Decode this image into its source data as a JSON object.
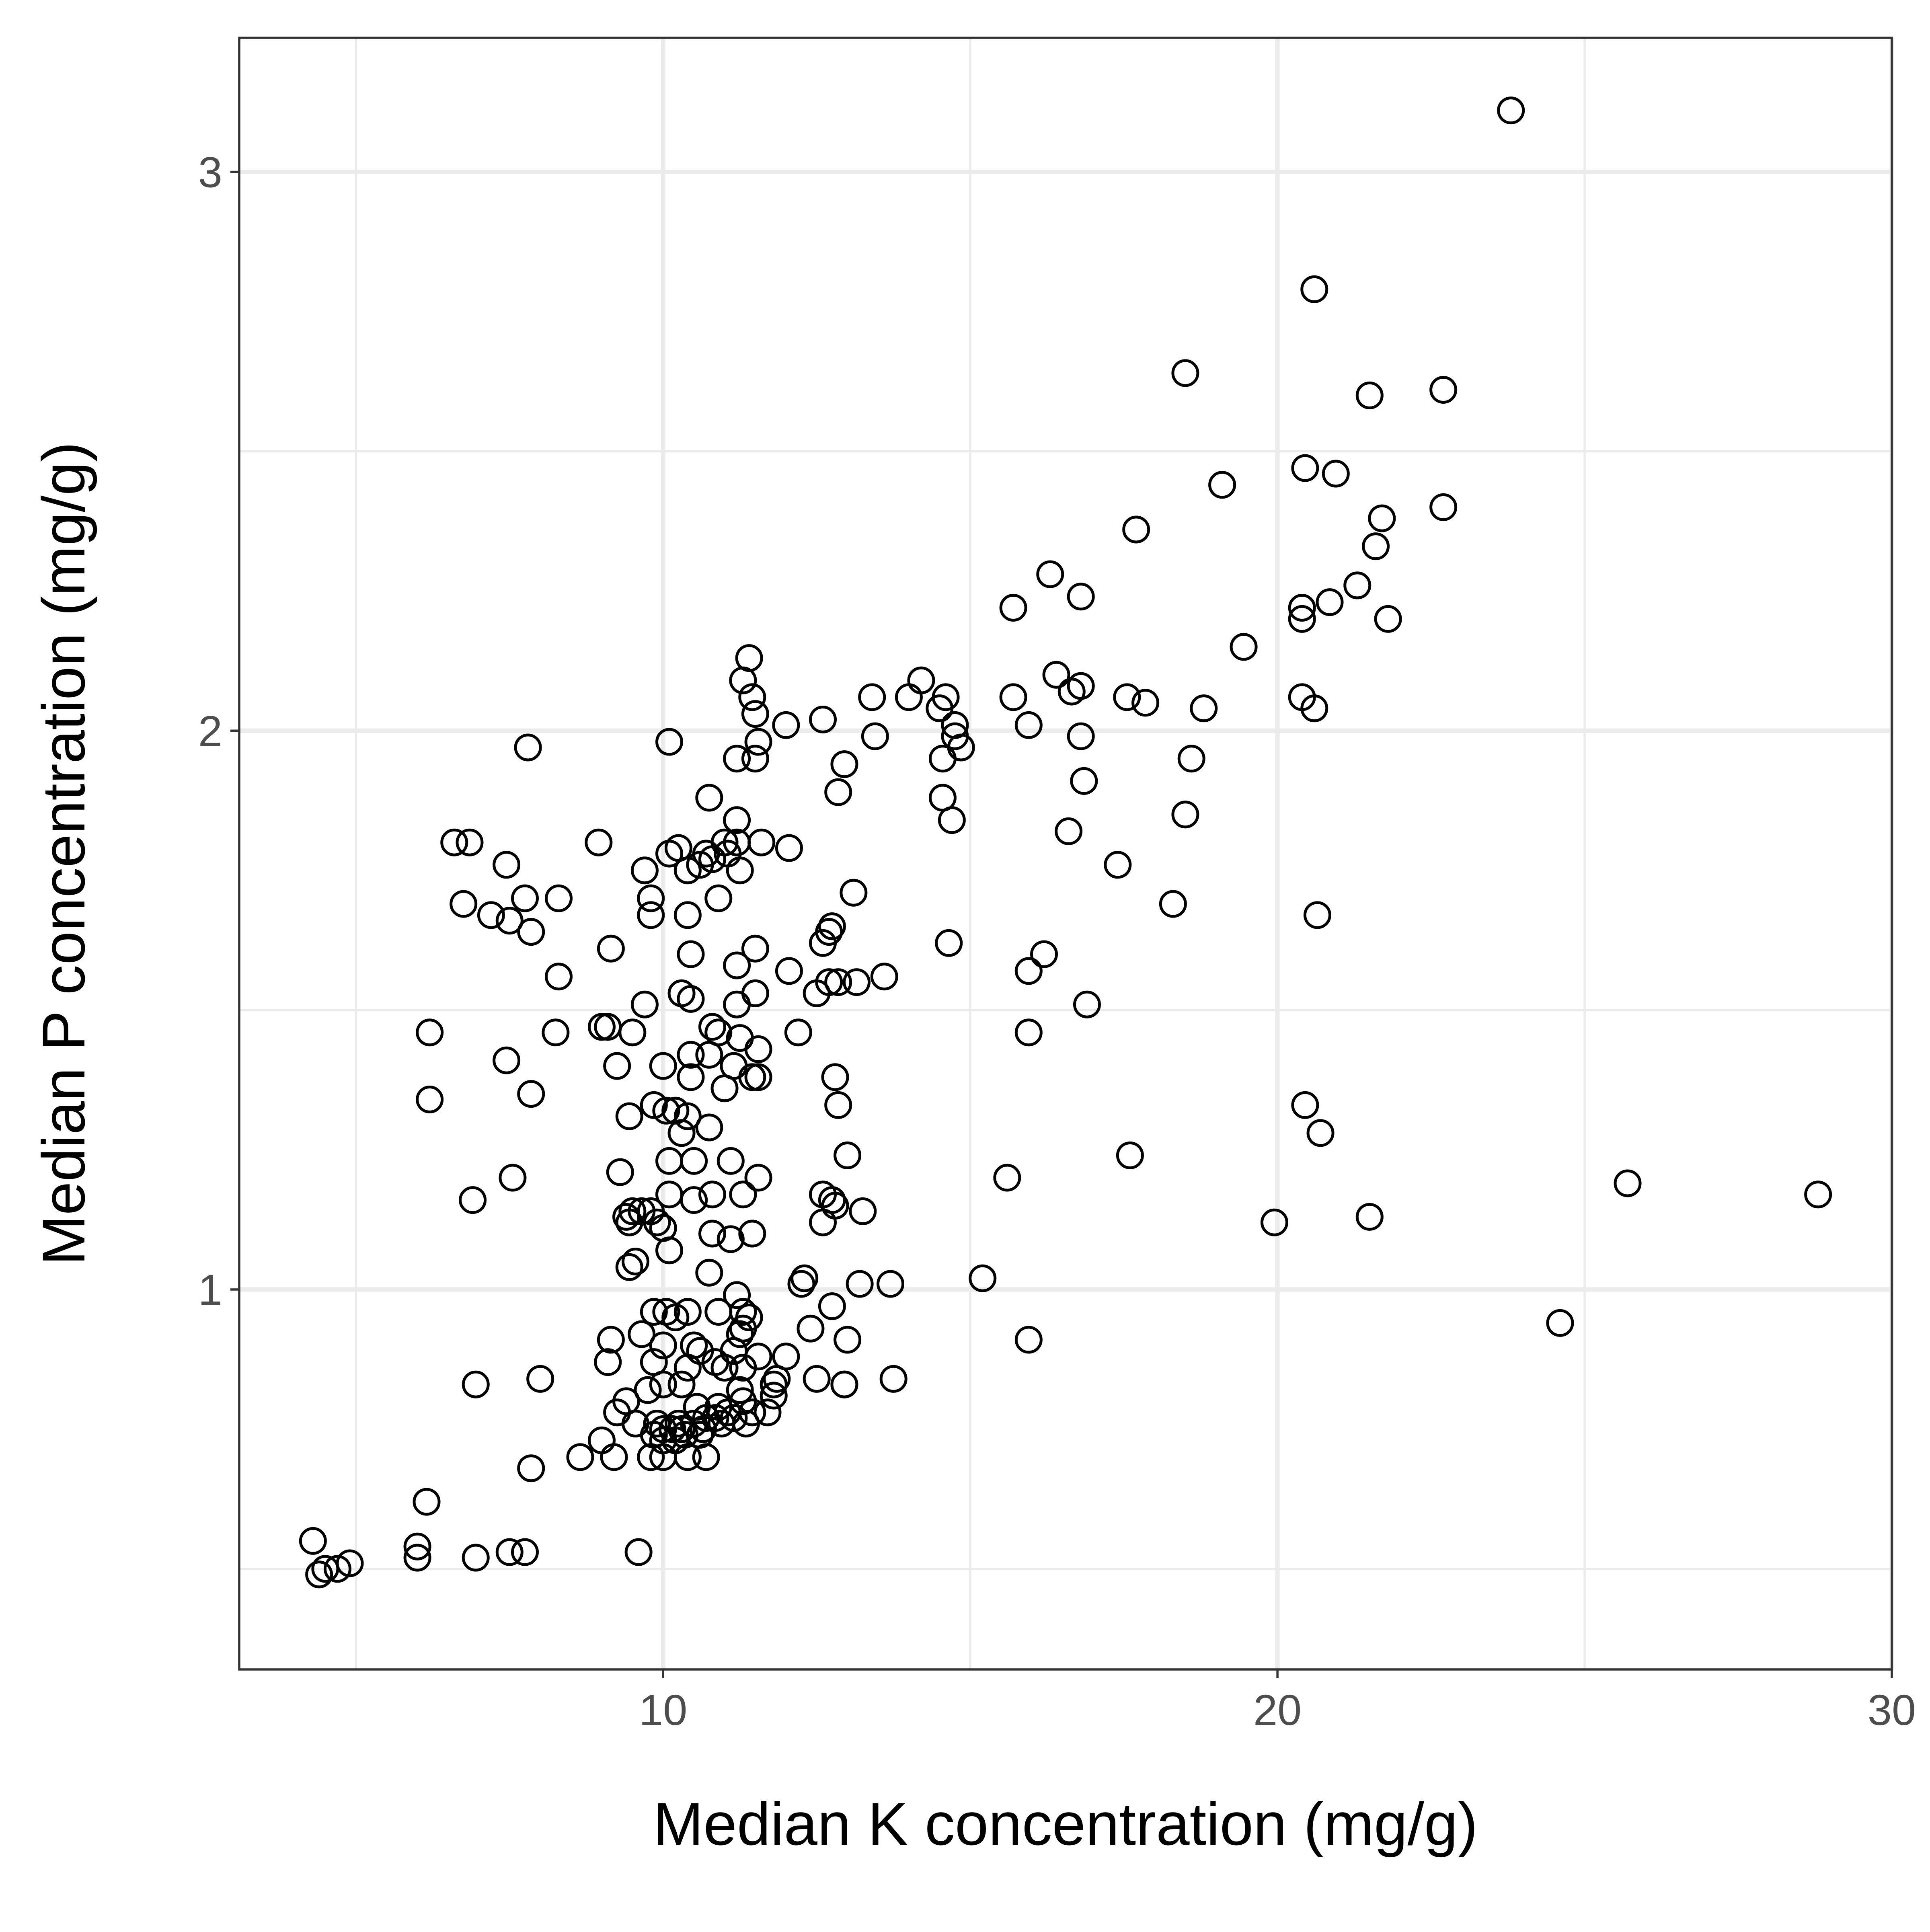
{
  "chart_data": {
    "type": "scatter",
    "title": "",
    "xlabel": "Median K concentration (mg/g)",
    "ylabel": "Median P concentration (mg/g)",
    "xlim": [
      3.1,
      30
    ],
    "ylim": [
      0.32,
      3.24
    ],
    "x_major_ticks": [
      10,
      20,
      30
    ],
    "x_minor_ticks": [
      5,
      15,
      25
    ],
    "y_major_ticks": [
      1,
      2,
      3
    ],
    "y_minor_ticks": [
      0.5,
      1.5,
      2.5
    ],
    "x_tick_labels": [
      "10",
      "20",
      "30"
    ],
    "y_tick_labels": [
      "1",
      "2",
      "3"
    ],
    "grid": true,
    "legend": "none",
    "theme": "bw",
    "colors": {
      "points": "#000000",
      "grid": "#ebebeb",
      "panel_border": "#333333",
      "tick_text": "#4d4d4d"
    },
    "series": [
      {
        "marker": "open-circle",
        "points": [
          [
            23.8,
            3.11
          ],
          [
            20.6,
            2.79
          ],
          [
            18.5,
            2.64
          ],
          [
            21.5,
            2.6
          ],
          [
            22.7,
            2.61
          ],
          [
            19.1,
            2.44
          ],
          [
            20.45,
            2.47
          ],
          [
            20.95,
            2.46
          ],
          [
            21.7,
            2.38
          ],
          [
            22.7,
            2.4
          ],
          [
            17.7,
            2.36
          ],
          [
            21.6,
            2.33
          ],
          [
            16.3,
            2.28
          ],
          [
            21.3,
            2.26
          ],
          [
            16.8,
            2.24
          ],
          [
            15.7,
            2.22
          ],
          [
            20.4,
            2.22
          ],
          [
            20.85,
            2.23
          ],
          [
            20.4,
            2.2
          ],
          [
            21.8,
            2.2
          ],
          [
            19.45,
            2.15
          ],
          [
            11.4,
            2.13
          ],
          [
            11.3,
            2.09
          ],
          [
            11.45,
            2.06
          ],
          [
            11.5,
            2.03
          ],
          [
            14.2,
            2.09
          ],
          [
            16.4,
            2.1
          ],
          [
            16.65,
            2.07
          ],
          [
            16.8,
            2.08
          ],
          [
            13.4,
            2.06
          ],
          [
            14.0,
            2.06
          ],
          [
            14.6,
            2.06
          ],
          [
            14.5,
            2.04
          ],
          [
            15.7,
            2.06
          ],
          [
            17.55,
            2.06
          ],
          [
            17.85,
            2.05
          ],
          [
            18.8,
            2.04
          ],
          [
            20.4,
            2.06
          ],
          [
            20.6,
            2.04
          ],
          [
            12.0,
            2.01
          ],
          [
            12.6,
            2.02
          ],
          [
            14.75,
            2.01
          ],
          [
            15.95,
            2.01
          ],
          [
            14.75,
            1.99
          ],
          [
            16.8,
            1.99
          ],
          [
            13.45,
            1.99
          ],
          [
            14.85,
            1.97
          ],
          [
            11.55,
            1.98
          ],
          [
            10.1,
            1.98
          ],
          [
            7.8,
            1.97
          ],
          [
            11.5,
            1.95
          ],
          [
            11.2,
            1.95
          ],
          [
            14.55,
            1.95
          ],
          [
            12.95,
            1.94
          ],
          [
            18.6,
            1.95
          ],
          [
            16.85,
            1.91
          ],
          [
            12.85,
            1.89
          ],
          [
            14.55,
            1.88
          ],
          [
            10.75,
            1.88
          ],
          [
            18.5,
            1.85
          ],
          [
            14.7,
            1.84
          ],
          [
            11.2,
            1.84
          ],
          [
            16.6,
            1.82
          ],
          [
            6.6,
            1.8
          ],
          [
            6.85,
            1.8
          ],
          [
            8.95,
            1.8
          ],
          [
            10.25,
            1.79
          ],
          [
            10.1,
            1.78
          ],
          [
            11.0,
            1.8
          ],
          [
            11.2,
            1.8
          ],
          [
            11.6,
            1.8
          ],
          [
            10.7,
            1.78
          ],
          [
            11.05,
            1.78
          ],
          [
            12.05,
            1.79
          ],
          [
            10.6,
            1.76
          ],
          [
            10.8,
            1.77
          ],
          [
            10.4,
            1.75
          ],
          [
            9.7,
            1.75
          ],
          [
            7.45,
            1.76
          ],
          [
            11.25,
            1.75
          ],
          [
            17.4,
            1.76
          ],
          [
            9.8,
            1.7
          ],
          [
            10.9,
            1.7
          ],
          [
            13.1,
            1.71
          ],
          [
            6.75,
            1.69
          ],
          [
            7.2,
            1.67
          ],
          [
            7.75,
            1.7
          ],
          [
            8.3,
            1.7
          ],
          [
            7.5,
            1.66
          ],
          [
            7.85,
            1.64
          ],
          [
            18.3,
            1.69
          ],
          [
            20.65,
            1.67
          ],
          [
            9.8,
            1.67
          ],
          [
            10.4,
            1.67
          ],
          [
            12.75,
            1.65
          ],
          [
            12.7,
            1.64
          ],
          [
            12.6,
            1.62
          ],
          [
            14.65,
            1.62
          ],
          [
            9.15,
            1.61
          ],
          [
            10.45,
            1.6
          ],
          [
            11.5,
            1.61
          ],
          [
            16.2,
            1.6
          ],
          [
            11.2,
            1.58
          ],
          [
            12.05,
            1.57
          ],
          [
            15.95,
            1.57
          ],
          [
            8.3,
            1.56
          ],
          [
            12.85,
            1.55
          ],
          [
            12.7,
            1.55
          ],
          [
            13.15,
            1.55
          ],
          [
            13.6,
            1.56
          ],
          [
            12.5,
            1.53
          ],
          [
            10.3,
            1.53
          ],
          [
            10.45,
            1.52
          ],
          [
            11.5,
            1.53
          ],
          [
            9.7,
            1.51
          ],
          [
            11.2,
            1.51
          ],
          [
            16.9,
            1.51
          ],
          [
            6.2,
            1.46
          ],
          [
            8.25,
            1.46
          ],
          [
            9.0,
            1.47
          ],
          [
            9.1,
            1.47
          ],
          [
            9.5,
            1.46
          ],
          [
            10.8,
            1.47
          ],
          [
            10.9,
            1.46
          ],
          [
            11.25,
            1.45
          ],
          [
            12.2,
            1.46
          ],
          [
            15.95,
            1.46
          ],
          [
            11.55,
            1.43
          ],
          [
            10.75,
            1.42
          ],
          [
            10.45,
            1.42
          ],
          [
            7.45,
            1.41
          ],
          [
            9.25,
            1.4
          ],
          [
            10.0,
            1.4
          ],
          [
            11.15,
            1.4
          ],
          [
            10.45,
            1.38
          ],
          [
            11.45,
            1.38
          ],
          [
            11.55,
            1.38
          ],
          [
            12.8,
            1.38
          ],
          [
            11.0,
            1.36
          ],
          [
            7.85,
            1.35
          ],
          [
            6.2,
            1.34
          ],
          [
            9.85,
            1.33
          ],
          [
            20.45,
            1.33
          ],
          [
            12.85,
            1.33
          ],
          [
            10.05,
            1.32
          ],
          [
            10.2,
            1.32
          ],
          [
            10.4,
            1.31
          ],
          [
            10.3,
            1.28
          ],
          [
            9.45,
            1.31
          ],
          [
            10.75,
            1.29
          ],
          [
            20.7,
            1.28
          ],
          [
            13.0,
            1.24
          ],
          [
            17.6,
            1.24
          ],
          [
            10.1,
            1.23
          ],
          [
            10.5,
            1.23
          ],
          [
            11.1,
            1.23
          ],
          [
            9.3,
            1.21
          ],
          [
            7.55,
            1.2
          ],
          [
            15.6,
            1.2
          ],
          [
            11.55,
            1.2
          ],
          [
            25.7,
            1.19
          ],
          [
            28.8,
            1.17
          ],
          [
            6.9,
            1.16
          ],
          [
            10.1,
            1.17
          ],
          [
            10.5,
            1.16
          ],
          [
            10.8,
            1.17
          ],
          [
            11.3,
            1.17
          ],
          [
            12.6,
            1.17
          ],
          [
            12.75,
            1.16
          ],
          [
            12.8,
            1.15
          ],
          [
            13.25,
            1.14
          ],
          [
            9.4,
            1.13
          ],
          [
            9.5,
            1.14
          ],
          [
            9.65,
            1.14
          ],
          [
            9.8,
            1.14
          ],
          [
            9.9,
            1.12
          ],
          [
            9.45,
            1.12
          ],
          [
            10.0,
            1.11
          ],
          [
            12.6,
            1.12
          ],
          [
            19.95,
            1.12
          ],
          [
            21.5,
            1.13
          ],
          [
            10.8,
            1.1
          ],
          [
            11.45,
            1.1
          ],
          [
            11.1,
            1.09
          ],
          [
            10.1,
            1.07
          ],
          [
            9.55,
            1.05
          ],
          [
            9.45,
            1.04
          ],
          [
            10.75,
            1.03
          ],
          [
            12.3,
            1.02
          ],
          [
            12.25,
            1.01
          ],
          [
            13.2,
            1.01
          ],
          [
            13.7,
            1.01
          ],
          [
            15.2,
            1.02
          ],
          [
            11.2,
            0.99
          ],
          [
            10.9,
            0.96
          ],
          [
            11.3,
            0.96
          ],
          [
            11.4,
            0.95
          ],
          [
            9.85,
            0.96
          ],
          [
            10.05,
            0.96
          ],
          [
            10.2,
            0.95
          ],
          [
            10.4,
            0.96
          ],
          [
            12.75,
            0.97
          ],
          [
            12.4,
            0.93
          ],
          [
            11.3,
            0.93
          ],
          [
            11.25,
            0.92
          ],
          [
            9.15,
            0.91
          ],
          [
            9.65,
            0.92
          ],
          [
            13.0,
            0.91
          ],
          [
            15.95,
            0.91
          ],
          [
            24.6,
            0.94
          ],
          [
            10.0,
            0.9
          ],
          [
            10.5,
            0.9
          ],
          [
            10.6,
            0.89
          ],
          [
            11.15,
            0.89
          ],
          [
            11.55,
            0.88
          ],
          [
            12.0,
            0.88
          ],
          [
            9.1,
            0.87
          ],
          [
            9.85,
            0.87
          ],
          [
            10.4,
            0.86
          ],
          [
            10.85,
            0.87
          ],
          [
            11.0,
            0.86
          ],
          [
            11.3,
            0.86
          ],
          [
            8.0,
            0.84
          ],
          [
            6.95,
            0.83
          ],
          [
            12.5,
            0.84
          ],
          [
            12.95,
            0.83
          ],
          [
            13.75,
            0.84
          ],
          [
            12.95,
            0.83
          ],
          [
            11.8,
            0.83
          ],
          [
            11.85,
            0.84
          ],
          [
            10.3,
            0.83
          ],
          [
            10.0,
            0.83
          ],
          [
            9.75,
            0.82
          ],
          [
            11.25,
            0.82
          ],
          [
            11.3,
            0.8
          ],
          [
            11.8,
            0.81
          ],
          [
            9.4,
            0.8
          ],
          [
            9.25,
            0.78
          ],
          [
            10.55,
            0.79
          ],
          [
            10.9,
            0.79
          ],
          [
            11.05,
            0.78
          ],
          [
            11.15,
            0.77
          ],
          [
            11.45,
            0.78
          ],
          [
            11.7,
            0.78
          ],
          [
            10.7,
            0.77
          ],
          [
            10.85,
            0.77
          ],
          [
            9.55,
            0.76
          ],
          [
            9.9,
            0.76
          ],
          [
            10.0,
            0.75
          ],
          [
            10.15,
            0.75
          ],
          [
            10.25,
            0.76
          ],
          [
            10.3,
            0.75
          ],
          [
            10.5,
            0.76
          ],
          [
            10.65,
            0.75
          ],
          [
            10.95,
            0.76
          ],
          [
            11.35,
            0.76
          ],
          [
            9.0,
            0.73
          ],
          [
            9.85,
            0.74
          ],
          [
            10.0,
            0.73
          ],
          [
            10.2,
            0.73
          ],
          [
            10.35,
            0.74
          ],
          [
            10.6,
            0.74
          ],
          [
            8.65,
            0.7
          ],
          [
            9.2,
            0.7
          ],
          [
            9.8,
            0.7
          ],
          [
            10.0,
            0.7
          ],
          [
            10.4,
            0.7
          ],
          [
            10.7,
            0.7
          ],
          [
            7.85,
            0.68
          ],
          [
            6.15,
            0.62
          ],
          [
            4.3,
            0.55
          ],
          [
            4.4,
            0.49
          ],
          [
            4.5,
            0.5
          ],
          [
            4.7,
            0.5
          ],
          [
            4.9,
            0.51
          ],
          [
            6.0,
            0.52
          ],
          [
            6.0,
            0.54
          ],
          [
            6.95,
            0.52
          ],
          [
            7.5,
            0.53
          ],
          [
            7.75,
            0.53
          ],
          [
            9.6,
            0.53
          ]
        ]
      }
    ]
  }
}
